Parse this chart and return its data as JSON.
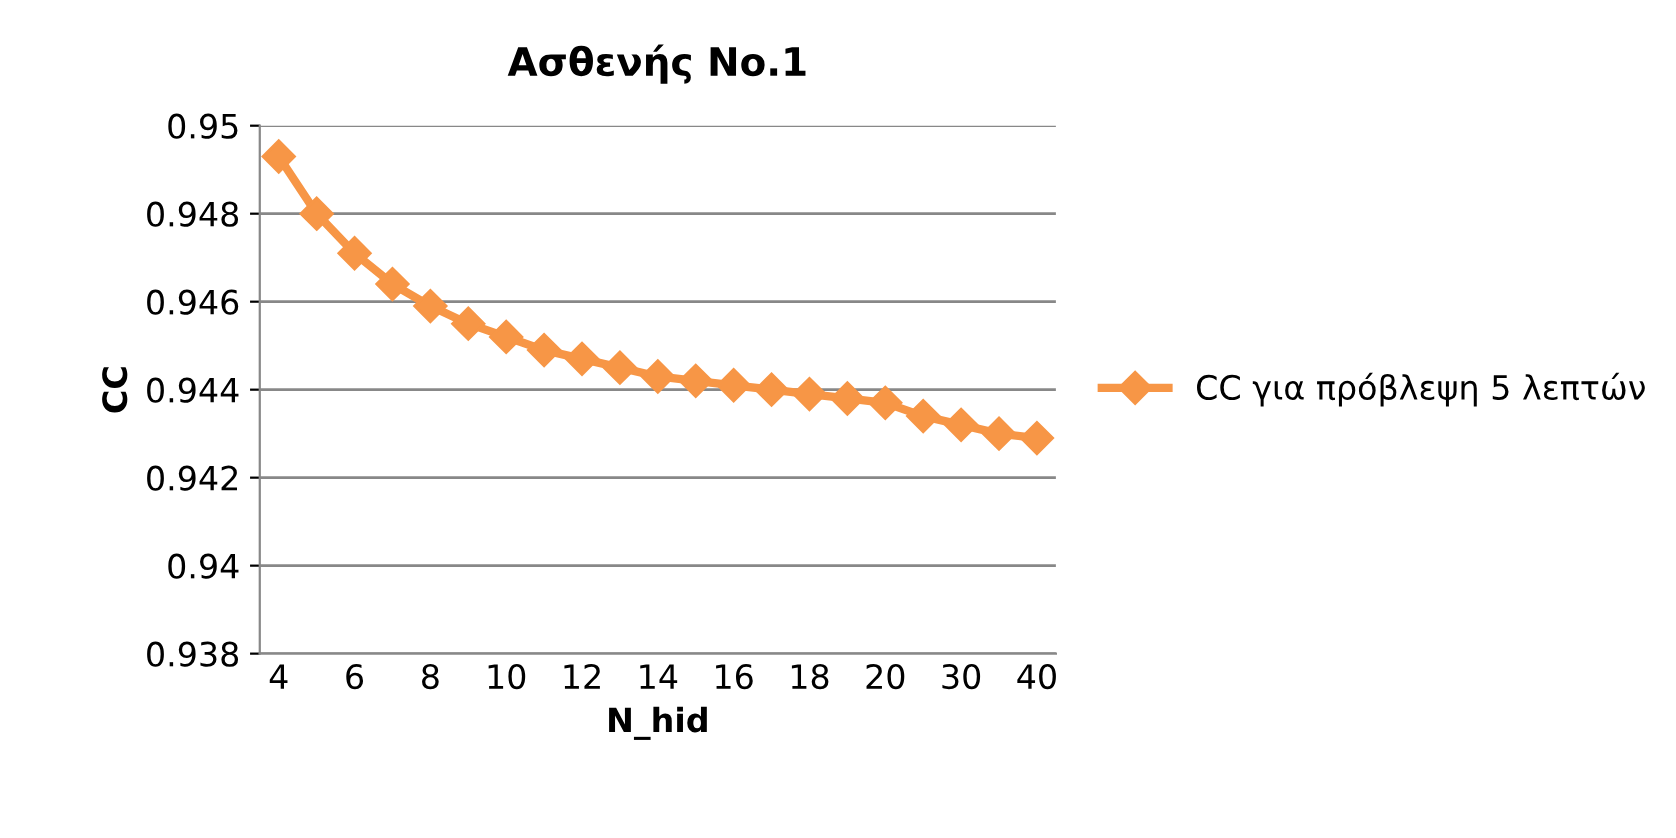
{
  "chart_data": {
    "type": "line",
    "title": "Ασθενής No.1",
    "xlabel": "N_hid",
    "ylabel": "CC",
    "categories": [
      "4",
      null,
      "6",
      null,
      "8",
      null,
      "10",
      null,
      "12",
      null,
      "14",
      null,
      "16",
      null,
      "18",
      null,
      "20",
      null,
      "30",
      null,
      "40"
    ],
    "series": [
      {
        "name": "CC για πρόβλεψη 5 λεπτών",
        "color": "#f79646",
        "values": [
          0.9493,
          0.948,
          0.9471,
          0.9464,
          0.9459,
          0.9455,
          0.9452,
          0.9449,
          0.9447,
          0.9445,
          0.9443,
          0.9442,
          0.9441,
          0.944,
          0.9439,
          0.9438,
          0.9437,
          0.9434,
          0.9432,
          0.943,
          0.9429
        ]
      }
    ],
    "ylim": [
      0.938,
      0.95
    ],
    "yticks": [
      0.938,
      0.94,
      0.942,
      0.944,
      0.946,
      0.948,
      0.95
    ],
    "grid": "y",
    "legend": "right",
    "marker": "diamond",
    "line_style": "solid"
  }
}
